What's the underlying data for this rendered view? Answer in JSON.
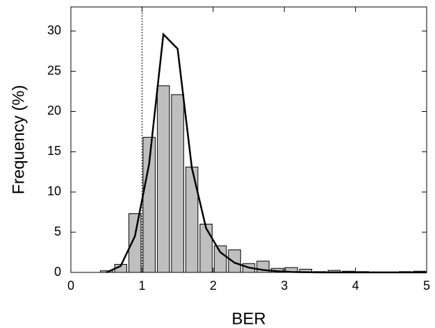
{
  "chart_data": {
    "type": "histogram",
    "x_label": "BER",
    "y_label": "Frequency (%)",
    "bins": [
      0.4,
      0.6,
      0.8,
      1.0,
      1.2,
      1.4,
      1.6,
      1.8,
      2.0,
      2.2,
      2.4,
      2.6,
      2.8,
      3.0,
      3.2,
      3.4,
      3.6,
      3.8,
      4.0,
      4.2,
      4.4,
      4.6,
      4.8,
      5.0
    ],
    "values": [
      0.2,
      1.0,
      7.3,
      16.8,
      23.2,
      22.1,
      13.1,
      6.0,
      3.3,
      2.8,
      1.1,
      1.4,
      0.5,
      0.6,
      0.4,
      0.1,
      0.25,
      0.15,
      0.1,
      0.05,
      0.05,
      0.1,
      0.15
    ],
    "color": "#bfbfbf",
    "overlay": {
      "type": "line",
      "color": "#000000",
      "x": [
        0.5,
        0.7,
        0.9,
        1.1,
        1.3,
        1.5,
        1.7,
        1.9,
        2.1,
        2.3,
        2.5,
        2.7,
        2.9,
        3.1,
        3.5,
        4.0,
        4.5,
        5.0
      ],
      "values": [
        0,
        0.8,
        4.5,
        13.5,
        29.6,
        27.8,
        13.0,
        5.5,
        2.5,
        1.2,
        0.6,
        0.3,
        0.15,
        0.05,
        0,
        0,
        0,
        0
      ]
    },
    "vline": 1,
    "xlim": [
      0,
      5
    ],
    "xticks": [
      0,
      1,
      2,
      3,
      4,
      5
    ],
    "ylim": [
      0,
      33
    ],
    "yticks": [
      0,
      5,
      10,
      15,
      20,
      25,
      30
    ]
  }
}
